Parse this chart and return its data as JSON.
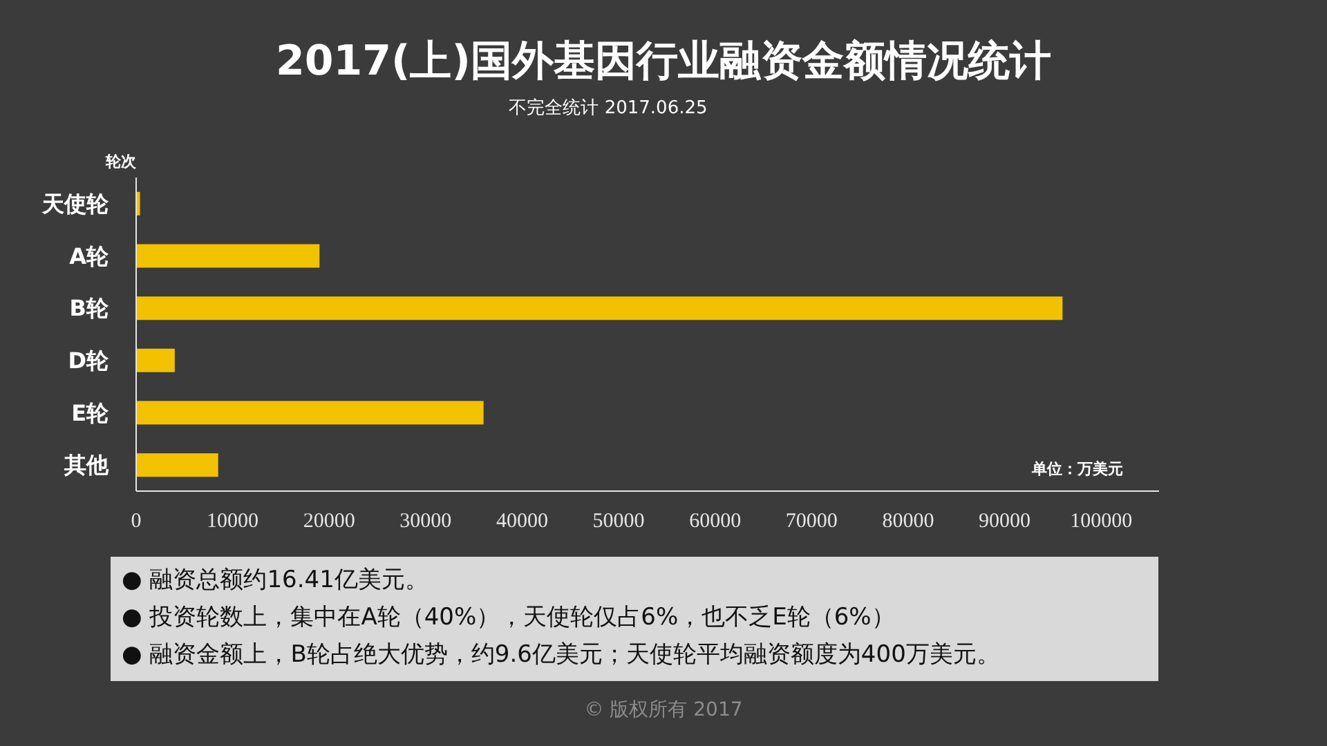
{
  "chart_data": {
    "type": "bar",
    "orientation": "horizontal",
    "title": "2017(上)国外基因行业融资金额情况统计",
    "subtitle": "不完全统计 2017.06.25",
    "ylabel": "轮次",
    "xlabel": "单位：万美元",
    "categories": [
      "天使轮",
      "A轮",
      "B轮",
      "D轮",
      "E轮",
      "其他"
    ],
    "values": [
      400,
      19000,
      96000,
      4000,
      36000,
      8500
    ],
    "color": "#f2c200",
    "xlim": [
      0,
      106000
    ],
    "xticks": [
      0,
      10000,
      20000,
      30000,
      40000,
      50000,
      60000,
      70000,
      80000,
      90000,
      100000
    ],
    "annotations": [
      "●  融资总额约16.41亿美元。",
      "●  投资轮数上，集中在A轮（40%），天使轮仅占6%，也不乏E轮（6%）",
      "●  融资金额上，B轮占绝大优势，约9.6亿美元；天使轮平均融资额度为400万美元。",
      "© 版权所有 2017"
    ]
  }
}
